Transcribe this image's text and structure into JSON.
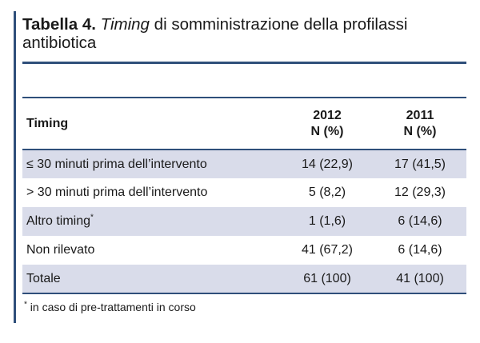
{
  "title": {
    "label": "Tabella 4.",
    "italic": "Timing",
    "rest": " di somministrazione della profilassi antibiotica"
  },
  "table": {
    "headers": {
      "label": "Timing",
      "col1": [
        "2012",
        "N (%)"
      ],
      "col2": [
        "2011",
        "N (%)"
      ]
    },
    "rows": [
      {
        "label": "≤ 30 minuti prima dell’intervento",
        "marker": "",
        "v2012": "14 (22,9)",
        "v2011": "17 (41,5)"
      },
      {
        "label": "> 30 minuti prima dell’intervento",
        "marker": "",
        "v2012": "5 (8,2)",
        "v2011": "12 (29,3)"
      },
      {
        "label": "Altro timing",
        "marker": "*",
        "v2012": "1 (1,6)",
        "v2011": "6 (14,6)"
      },
      {
        "label": "Non rilevato",
        "marker": "",
        "v2012": "41 (67,2)",
        "v2011": "6 (14,6)"
      },
      {
        "label": "Totale",
        "marker": "",
        "v2012": "61 (100)",
        "v2011": "41 (100)"
      }
    ]
  },
  "footnote": {
    "marker": "*",
    "text": " in caso di pre-trattamenti in corso"
  },
  "colors": {
    "accent": "#2f4f7a",
    "row_shade": "#d9dcea"
  }
}
